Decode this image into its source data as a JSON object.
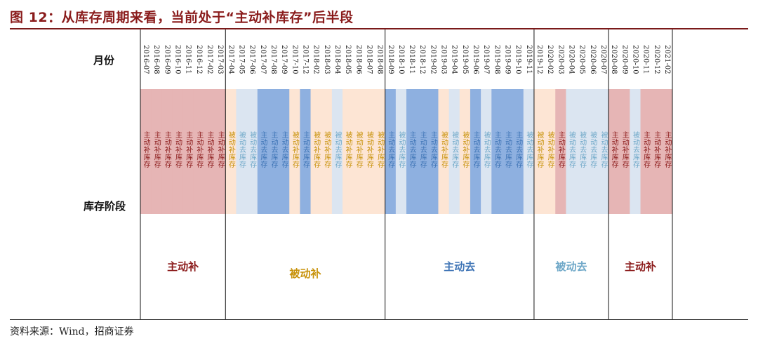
{
  "title": "图 12：从库存周期来看，当前处于“主动补库存”后半段",
  "source": "资料来源：Wind，招商证券",
  "row_labels": {
    "month": "月份",
    "stage": "库存阶段"
  },
  "chart_data": {
    "type": "timeline",
    "months": [
      "2016-07",
      "2016-08",
      "2016-09",
      "2016-10",
      "2016-11",
      "2016-12",
      "2017-02",
      "2017-03",
      "2017-04",
      "2017-05",
      "2017-06",
      "2017-07",
      "2017-08",
      "2017-09",
      "2017-10",
      "2017-12",
      "2018-02",
      "2018-03",
      "2018-04",
      "2018-05",
      "2018-06",
      "2018-07",
      "2018-08",
      "2018-09",
      "2018-10",
      "2018-11",
      "2018-12",
      "2019-02",
      "2019-03",
      "2019-04",
      "2019-05",
      "2019-06",
      "2019-07",
      "2019-08",
      "2019-09",
      "2019-10",
      "2019-11",
      "2019-12",
      "2020-02",
      "2020-03",
      "2020-04",
      "2020-05",
      "2020-06",
      "2020-07",
      "2020-08",
      "2020-09",
      "2020-10",
      "2020-11",
      "2020-12",
      "2021-02"
    ],
    "stages": [
      "主动补库存",
      "主动补库存",
      "主动补库存",
      "主动补库存",
      "主动补库存",
      "主动补库存",
      "主动补库存",
      "主动补库存",
      "被动补库存",
      "被动去库存",
      "被动去库存",
      "主动去库存",
      "主动去库存",
      "主动去库存",
      "被动补库存",
      "主动去库存",
      "被动补库存",
      "被动补库存",
      "被动去库存",
      "被动补库存",
      "被动补库存",
      "被动补库存",
      "被动补库存",
      "主动去库存",
      "被动去库存",
      "主动去库存",
      "主动去库存",
      "主动去库存",
      "被动补库存",
      "被动去库存",
      "被动补库存",
      "主动去库存",
      "被动去库存",
      "主动去库存",
      "主动去库存",
      "主动去库存",
      "被动去库存",
      "被动补库存",
      "被动补库存",
      "主动补库存",
      "被动去库存",
      "被动去库存",
      "被动去库存",
      "被动去库存",
      "主动补库存",
      "主动补库存",
      "被动去库存",
      "主动补库存",
      "主动补库存",
      "主动补库存"
    ],
    "stage_colors": {
      "主动补库存": {
        "fill": "#e6b5b5",
        "text": "#8b1a1a"
      },
      "被动补库存": {
        "fill": "#fde5d4",
        "text": "#c8920a"
      },
      "被动去库存": {
        "fill": "#dbe5f1",
        "text": "#6fa8c8"
      },
      "主动去库存": {
        "fill": "#8eb0e0",
        "text": "#3d73b5"
      }
    },
    "phases": [
      {
        "label": "主动补",
        "start": 0,
        "end": 8,
        "color": "#8b1a1a"
      },
      {
        "label": "被动补",
        "start": 8,
        "end": 23,
        "color": "#c8920a"
      },
      {
        "label": "主动去",
        "start": 23,
        "end": 37,
        "color": "#3d73b5"
      },
      {
        "label": "被动去",
        "start": 37,
        "end": 44,
        "color": "#6fa8c8"
      },
      {
        "label": "主动补",
        "start": 44,
        "end": 50,
        "color": "#8b1a1a"
      }
    ]
  }
}
